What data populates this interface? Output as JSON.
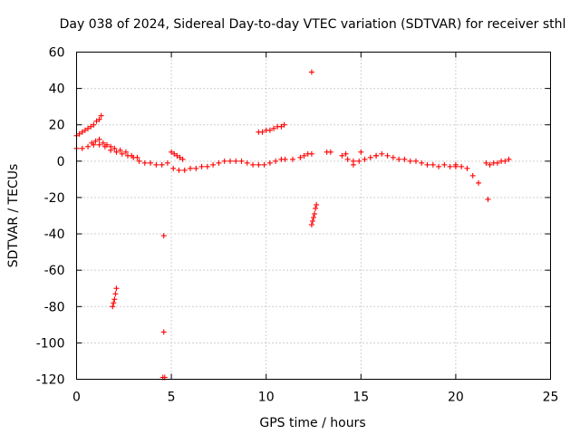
{
  "chart_data": {
    "type": "scatter",
    "title": "Day 038 of 2024, Sidereal Day-to-day VTEC variation (SDTVAR) for receiver sthl",
    "xlabel": "GPS time / hours",
    "ylabel": "SDTVAR / TECUs",
    "xlim": [
      0,
      25
    ],
    "ylim": [
      -120,
      60
    ],
    "xticks": [
      0,
      5,
      10,
      15,
      20,
      25
    ],
    "xtick_labels": [
      "0",
      "5",
      "10",
      "15",
      "20",
      "25"
    ],
    "yticks": [
      -120,
      -100,
      -80,
      -60,
      -40,
      -20,
      0,
      20,
      40,
      60
    ],
    "ytick_labels": [
      "-120",
      "-100",
      "-80",
      "-60",
      "-40",
      "-20",
      "0",
      "20",
      "40",
      "60"
    ],
    "grid": true,
    "marker": "+",
    "color": "#ff0000",
    "series": [
      {
        "name": "main_track",
        "x": [
          0.0,
          0.3,
          0.6,
          0.9,
          1.2,
          1.5,
          1.8,
          2.1,
          2.4,
          2.7,
          3.0,
          3.3,
          3.6,
          3.9,
          4.2,
          4.5,
          4.8,
          5.1,
          5.4,
          5.7,
          6.0,
          6.3,
          6.6,
          6.9,
          7.2,
          7.5,
          7.8,
          8.1,
          8.4,
          8.7,
          9.0,
          9.3,
          9.6,
          9.9,
          10.2,
          10.5,
          10.8
        ],
        "y": [
          7,
          7,
          8,
          9,
          9,
          8,
          6,
          5,
          4,
          3,
          2,
          0,
          -1,
          -1,
          -2,
          -2,
          -1,
          -4,
          -5,
          -5,
          -4,
          -4,
          -3,
          -3,
          -2,
          -1,
          0,
          0,
          0,
          0,
          -1,
          -2,
          -2,
          -2,
          -1,
          0,
          1
        ]
      },
      {
        "name": "upper_band",
        "x": [
          0.8,
          1.0,
          1.2,
          1.4,
          1.6,
          1.8,
          2.0,
          2.3,
          2.6,
          2.9,
          3.2
        ],
        "y": [
          10,
          11,
          12,
          10,
          9,
          8,
          7,
          6,
          5,
          3,
          2
        ]
      },
      {
        "name": "rising_arc",
        "x": [
          0.0,
          0.15,
          0.3,
          0.45,
          0.6,
          0.75,
          0.9,
          1.05,
          1.2,
          1.3
        ],
        "y": [
          14,
          15,
          16,
          17,
          18,
          19,
          20,
          22,
          23,
          25
        ]
      },
      {
        "name": "arc_9_11",
        "x": [
          9.6,
          9.8,
          10.0,
          10.2,
          10.4,
          10.6,
          10.8,
          10.95
        ],
        "y": [
          16,
          16,
          17,
          17,
          18,
          19,
          19,
          20
        ]
      },
      {
        "name": "arc_5",
        "x": [
          5.0,
          5.15,
          5.3,
          5.45,
          5.6
        ],
        "y": [
          5,
          4,
          3,
          2,
          1
        ]
      },
      {
        "name": "tail_11_13",
        "x": [
          11.0,
          11.4,
          11.8,
          12.0,
          12.2,
          12.4,
          13.2,
          13.4
        ],
        "y": [
          1,
          1,
          2,
          3,
          4,
          4,
          5,
          5
        ]
      },
      {
        "name": "track_14_22",
        "x": [
          14.0,
          14.3,
          14.6,
          14.9,
          15.2,
          15.5,
          15.8,
          16.1,
          16.4,
          16.7,
          17.0,
          17.3,
          17.6,
          17.9,
          18.2,
          18.5,
          18.8,
          19.1,
          19.4,
          19.7,
          20.0,
          20.3,
          20.6,
          20.9,
          21.2
        ],
        "y": [
          3,
          1,
          0,
          0,
          1,
          2,
          3,
          4,
          3,
          2,
          1,
          1,
          0,
          0,
          -1,
          -2,
          -2,
          -3,
          -2,
          -3,
          -3,
          -3,
          -4,
          -8,
          -12
        ]
      },
      {
        "name": "track_21_23",
        "x": [
          21.6,
          21.8,
          22.0,
          22.2,
          22.4,
          22.6,
          22.8
        ],
        "y": [
          -1,
          -2,
          -1,
          -1,
          0,
          0,
          1
        ]
      },
      {
        "name": "drop_2",
        "x": [
          1.9,
          1.95,
          2.0,
          2.05,
          2.1
        ],
        "y": [
          -80,
          -78,
          -76,
          -73,
          -70
        ]
      },
      {
        "name": "drop_12_5",
        "x": [
          12.4,
          12.45,
          12.5,
          12.55,
          12.6,
          12.65
        ],
        "y": [
          -35,
          -33,
          -31,
          -29,
          -26,
          -24
        ]
      },
      {
        "name": "outliers",
        "x": [
          12.4,
          4.6,
          4.6,
          4.55,
          4.65,
          21.7,
          14.6,
          15.0,
          15.8,
          14.2,
          20.0
        ],
        "y": [
          49,
          -41,
          -94,
          -119,
          -119,
          -21,
          -2,
          5,
          3,
          4,
          -2
        ]
      }
    ]
  }
}
